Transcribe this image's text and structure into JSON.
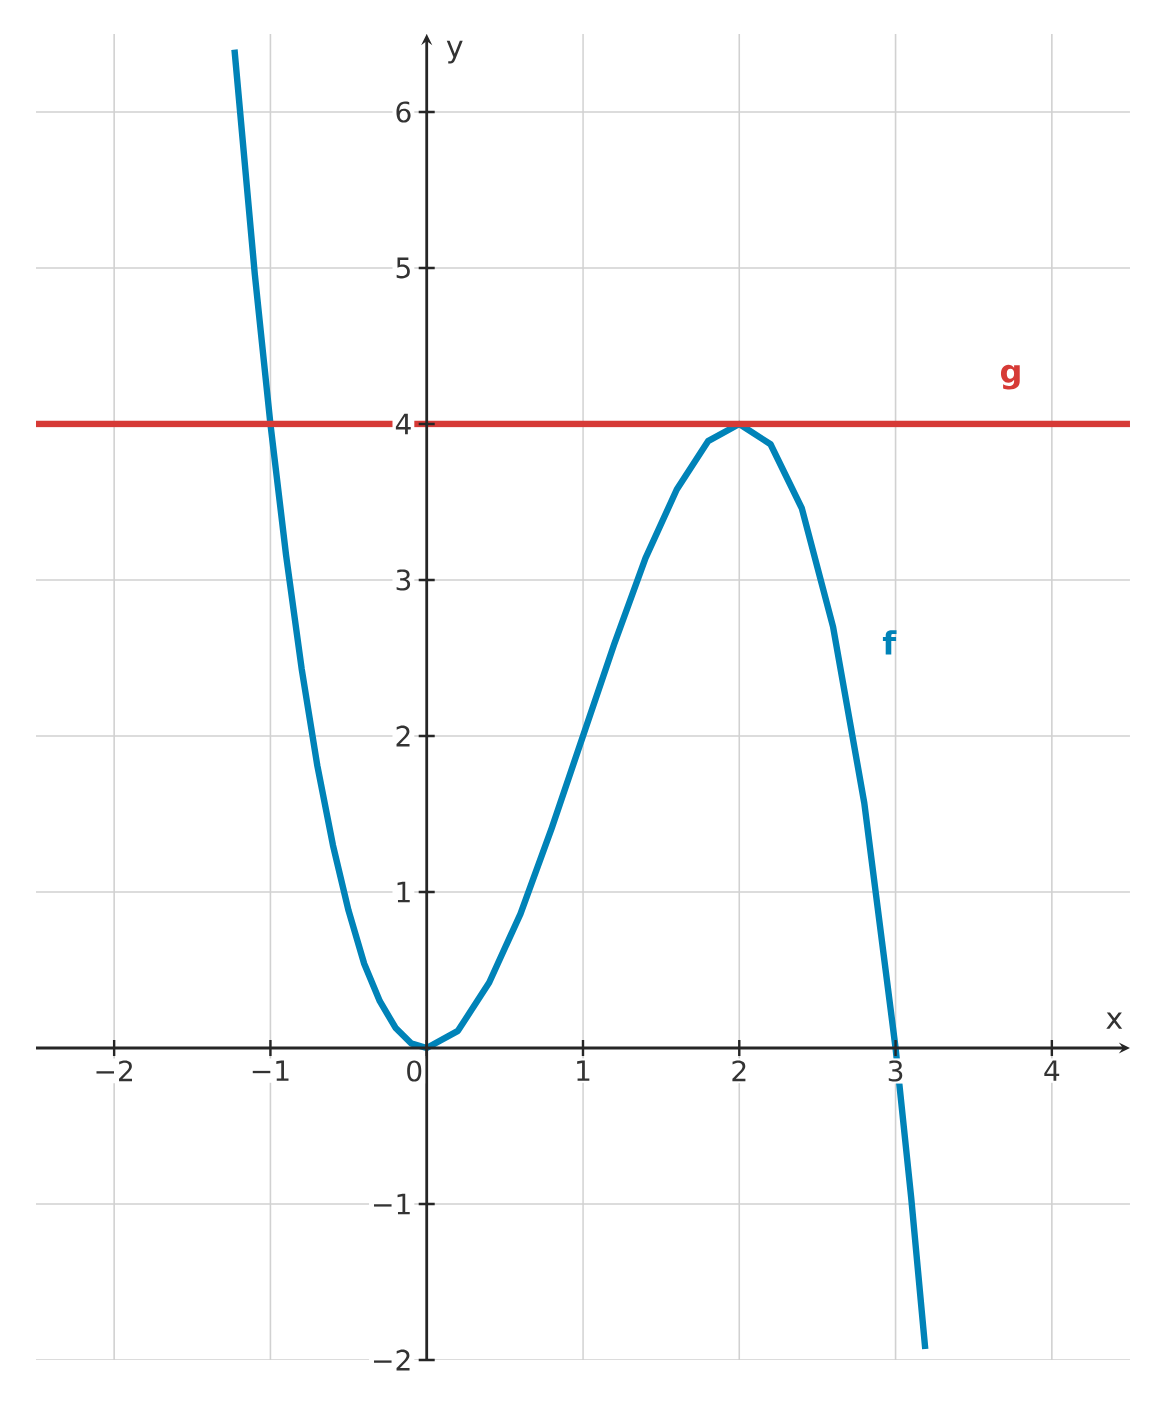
{
  "chart_data": {
    "type": "line",
    "xlabel": "x",
    "ylabel": "y",
    "xlim": [
      -2.5,
      4.5
    ],
    "ylim": [
      -2,
      6.5
    ],
    "xticks": [
      {
        "value": -2,
        "label": "−2"
      },
      {
        "value": -1,
        "label": "−1"
      },
      0,
      1,
      2,
      3,
      4
    ],
    "yticks": [
      {
        "value": -2,
        "label": "−2"
      },
      {
        "value": -1,
        "label": "−1"
      },
      1,
      2,
      3,
      4,
      5,
      6
    ],
    "grid": true,
    "legend": false,
    "series": [
      {
        "name": "f",
        "color": "#0083b8",
        "x": [
          -1.23,
          -1.1,
          -1.0,
          -0.9,
          -0.8,
          -0.7,
          -0.6,
          -0.5,
          -0.4,
          -0.3,
          -0.2,
          -0.1,
          0,
          0.2,
          0.4,
          0.6,
          0.8,
          1.0,
          1.2,
          1.4,
          1.6,
          1.8,
          2.0,
          2.2,
          2.4,
          2.6,
          2.8,
          3.0,
          3.1,
          3.19
        ],
        "values": [
          6.4,
          4.96,
          4,
          3.16,
          2.43,
          1.81,
          1.3,
          0.88,
          0.54,
          0.3,
          0.13,
          0.03,
          0,
          0.11,
          0.42,
          0.86,
          1.41,
          2,
          2.59,
          3.14,
          3.58,
          3.89,
          4,
          3.87,
          3.46,
          2.7,
          1.57,
          0,
          -0.96,
          -1.93
        ]
      },
      {
        "name": "g",
        "color": "#d63a36",
        "x": [
          -2.5,
          4.5
        ],
        "values": [
          4,
          4
        ]
      }
    ]
  }
}
